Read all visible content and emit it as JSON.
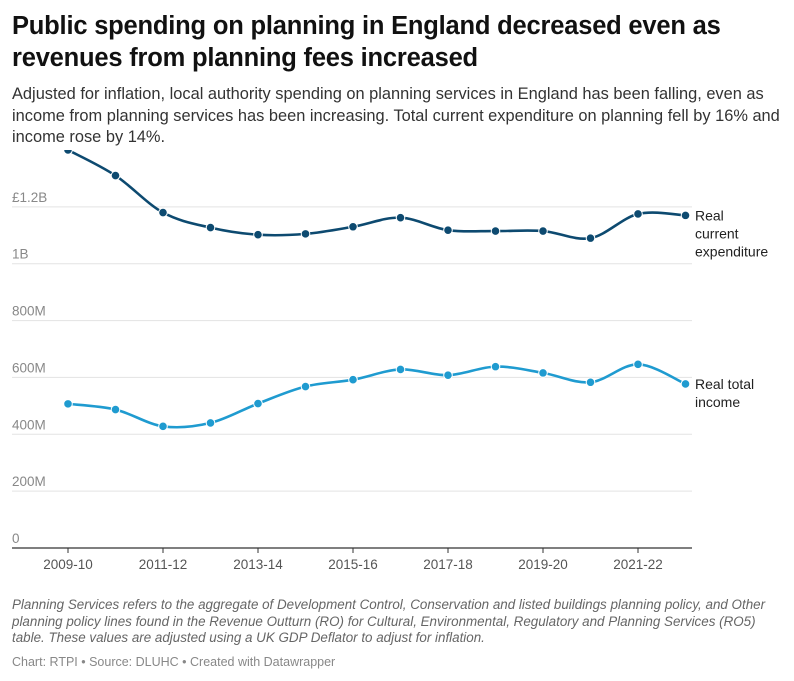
{
  "header": {
    "title": "Public spending on planning in England decreased even as revenues from planning fees increased",
    "subtitle": "Adjusted for inflation, local authority spending on planning services in England has been falling, even as income from planning services has been increasing. Total current expenditure on planning fell by 16% and income rose by 14%."
  },
  "footer": {
    "notes": "Planning Services refers to the aggregate of Development Control, Conservation and listed buildings planning policy, and Other planning policy lines found in the Revenue Outturn (RO) for Cultural, Environmental, Regulatory and Planning Services (RO5) table. These values are adjusted using a UK GDP Deflator to adjust for inflation.",
    "credit": "Chart: RTPI • Source: DLUHC • Created with Datawrapper"
  },
  "chart_data": {
    "type": "line",
    "title": "Public spending on planning in England decreased even as revenues from planning fees increased",
    "xlabel": "",
    "ylabel": "",
    "ylim": [
      0,
      1400000000
    ],
    "grid": true,
    "legend": "direct labels at right end of lines",
    "yticks": [
      {
        "value": 0,
        "label": "0"
      },
      {
        "value": 200000000,
        "label": "200M"
      },
      {
        "value": 400000000,
        "label": "400M"
      },
      {
        "value": 600000000,
        "label": "600M"
      },
      {
        "value": 800000000,
        "label": "800M"
      },
      {
        "value": 1000000000,
        "label": "1B"
      },
      {
        "value": 1200000000,
        "label": "£1.2B"
      }
    ],
    "x_tick_labels": [
      "2009-10",
      "2011-12",
      "2013-14",
      "2015-16",
      "2017-18",
      "2019-20",
      "2021-22"
    ],
    "x_tick_indices": [
      0,
      2,
      4,
      6,
      8,
      10,
      12
    ],
    "series": [
      {
        "name": "Real current expenditure",
        "label_lines": [
          "Real",
          "current",
          "expenditure"
        ],
        "color": "#0d4a70",
        "values": [
          1400000000,
          1310000000,
          1180000000,
          1127000000,
          1102000000,
          1105000000,
          1130000000,
          1162000000,
          1118000000,
          1115000000,
          1115000000,
          1090000000,
          1175000000,
          1170000000
        ]
      },
      {
        "name": "Real total income",
        "label_lines": [
          "Real total",
          "income"
        ],
        "color": "#1f9bd0",
        "values": [
          507000000,
          487000000,
          428000000,
          440000000,
          508000000,
          568000000,
          592000000,
          628000000,
          608000000,
          638000000,
          616000000,
          583000000,
          646000000,
          577000000
        ]
      }
    ]
  }
}
